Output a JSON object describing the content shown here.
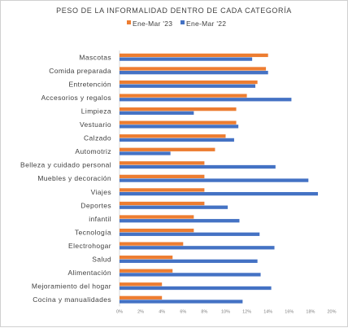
{
  "chart_data": {
    "type": "bar",
    "orientation": "horizontal",
    "title": "PESO DE LA INFORMALIDAD DENTRO DE CADA CATEGORÍA",
    "xlabel": "",
    "ylabel": "",
    "categories": [
      "Mascotas",
      "Comida preparada",
      "Entretención",
      "Accesorios y regalos",
      "Limpieza",
      "Vestuario",
      "Calzado",
      "Automotriz",
      "Belleza y cuidado personal",
      "Muebles y decoración",
      "Viajes",
      "Deportes",
      "infantil",
      "Tecnología",
      "Electrohogar",
      "Salud",
      "Alimentación",
      "Mejoramiento del hogar",
      "Cocina y manualidades"
    ],
    "series": [
      {
        "name": "Ene-Mar '23",
        "color": "#ED7D31",
        "values": [
          14.0,
          13.8,
          13.0,
          12.0,
          11.0,
          11.0,
          10.0,
          9.0,
          8.0,
          8.0,
          8.0,
          8.0,
          7.0,
          7.0,
          6.0,
          5.0,
          5.0,
          4.0,
          4.0
        ]
      },
      {
        "name": "Ene-Mar '22",
        "color": "#4472C4",
        "values": [
          12.5,
          14.0,
          12.8,
          16.2,
          7.0,
          11.2,
          10.8,
          4.8,
          14.7,
          17.8,
          18.7,
          10.2,
          11.3,
          13.2,
          14.6,
          13.0,
          13.3,
          14.3,
          11.6
        ]
      }
    ],
    "xlim": [
      0,
      20
    ],
    "xticks": [
      "0%",
      "2%",
      "4%",
      "6%",
      "8%",
      "10%",
      "12%",
      "14%",
      "16%",
      "18%",
      "20%"
    ],
    "legend_position": "top",
    "grid": false
  }
}
